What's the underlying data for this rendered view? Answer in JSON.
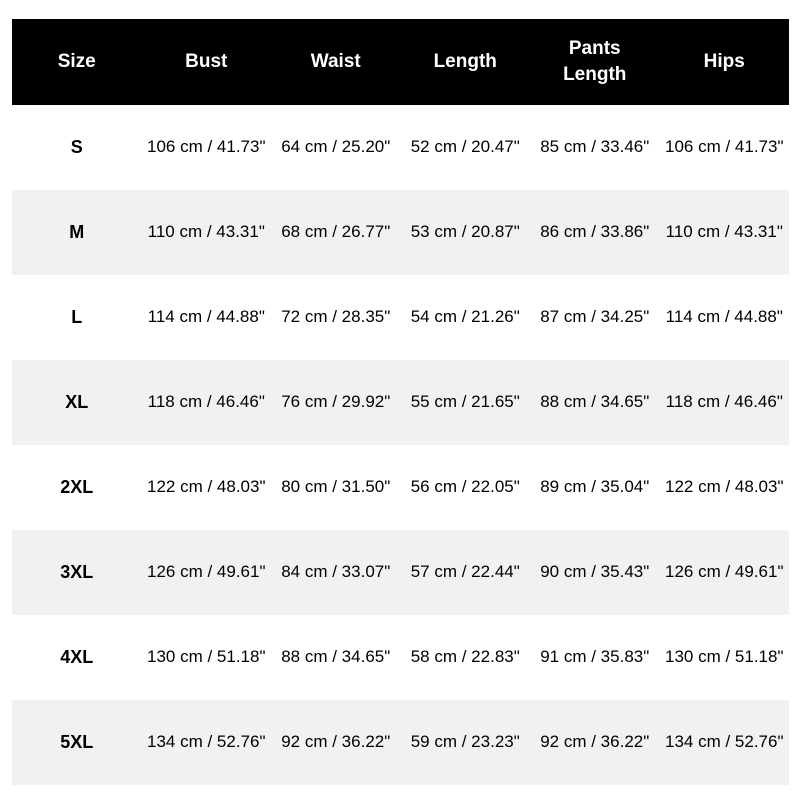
{
  "colors": {
    "header_bg": "#000000",
    "header_text": "#ffffff",
    "row_alt_bg": "#f1f1f1",
    "body_text": "#000000",
    "page_bg": "#ffffff"
  },
  "table": {
    "columns": {
      "size": "Size",
      "bust": "Bust",
      "waist": "Waist",
      "length": "Length",
      "pants_length": "Pants\nLength",
      "hips": "Hips"
    },
    "rows": [
      {
        "size": "S",
        "bust": "106 cm / 41.73\"",
        "waist": "64 cm / 25.20\"",
        "length": "52 cm / 20.47\"",
        "pants_length": "85 cm / 33.46\"",
        "hips": "106 cm / 41.73\""
      },
      {
        "size": "M",
        "bust": "110 cm / 43.31\"",
        "waist": "68 cm / 26.77\"",
        "length": "53 cm / 20.87\"",
        "pants_length": "86 cm / 33.86\"",
        "hips": "110 cm / 43.31\""
      },
      {
        "size": "L",
        "bust": "114 cm / 44.88\"",
        "waist": "72 cm / 28.35\"",
        "length": "54 cm / 21.26\"",
        "pants_length": "87 cm / 34.25\"",
        "hips": "114 cm / 44.88\""
      },
      {
        "size": "XL",
        "bust": "118 cm / 46.46\"",
        "waist": "76 cm / 29.92\"",
        "length": "55 cm / 21.65\"",
        "pants_length": "88 cm / 34.65\"",
        "hips": "118 cm / 46.46\""
      },
      {
        "size": "2XL",
        "bust": "122 cm / 48.03\"",
        "waist": "80 cm / 31.50\"",
        "length": "56 cm / 22.05\"",
        "pants_length": "89 cm / 35.04\"",
        "hips": "122 cm / 48.03\""
      },
      {
        "size": "3XL",
        "bust": "126 cm / 49.61\"",
        "waist": "84 cm / 33.07\"",
        "length": "57 cm / 22.44\"",
        "pants_length": "90 cm / 35.43\"",
        "hips": "126 cm / 49.61\""
      },
      {
        "size": "4XL",
        "bust": "130 cm / 51.18\"",
        "waist": "88 cm / 34.65\"",
        "length": "58 cm / 22.83\"",
        "pants_length": "91 cm / 35.83\"",
        "hips": "130 cm / 51.18\""
      },
      {
        "size": "5XL",
        "bust": "134 cm / 52.76\"",
        "waist": "92 cm / 36.22\"",
        "length": "59 cm / 23.23\"",
        "pants_length": "92 cm / 36.22\"",
        "hips": "134 cm / 52.76\""
      }
    ]
  }
}
